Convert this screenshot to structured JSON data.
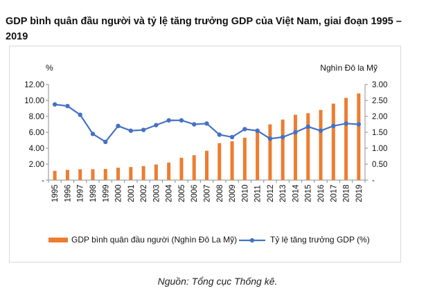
{
  "title": "GDP bình quân đầu người và tỷ lệ tăng trưởng GDP của Việt Nam, giai đoạn 1995 – 2019",
  "source": "Nguồn: Tổng cục Thống kê.",
  "colors": {
    "bar": "#ED7D31",
    "line": "#4472C4"
  },
  "chart_data": {
    "type": "bar+line",
    "categories": [
      "1995",
      "1996",
      "1997",
      "1998",
      "1999",
      "2000",
      "2001",
      "2002",
      "2003",
      "2004",
      "2005",
      "2006",
      "2007",
      "2008",
      "2009",
      "2010",
      "2011",
      "2012",
      "2013",
      "2014",
      "2015",
      "2016",
      "2017",
      "2018",
      "2019"
    ],
    "left_axis": {
      "unit": "%",
      "ylim": [
        0,
        12
      ],
      "ticks": [
        "-",
        "2.00",
        "4.00",
        "6.00",
        "8.00",
        "10.00",
        "12.00"
      ]
    },
    "right_axis": {
      "unit": "Nghìn Đô la Mỹ",
      "ylim": [
        0,
        3
      ],
      "ticks": [
        "-",
        "0.50",
        "1.00",
        "1.50",
        "2.00",
        "2.50",
        "3.00"
      ]
    },
    "series": [
      {
        "name": "GDP bình quân đầu người (Nghìn  Đô La Mỹ)",
        "type": "bar",
        "axis": "right",
        "values": [
          0.29,
          0.32,
          0.34,
          0.34,
          0.35,
          0.39,
          0.41,
          0.44,
          0.49,
          0.55,
          0.7,
          0.78,
          0.92,
          1.16,
          1.22,
          1.33,
          1.55,
          1.75,
          1.9,
          2.05,
          2.1,
          2.2,
          2.4,
          2.58,
          2.72
        ]
      },
      {
        "name": "Tỷ lệ tăng trưởng GDP (%)",
        "type": "line",
        "axis": "left",
        "values": [
          9.5,
          9.3,
          8.2,
          5.8,
          4.8,
          6.8,
          6.2,
          6.3,
          6.9,
          7.5,
          7.5,
          7.0,
          7.1,
          5.7,
          5.4,
          6.4,
          6.2,
          5.2,
          5.4,
          6.0,
          6.7,
          6.2,
          6.8,
          7.1,
          7.0
        ]
      }
    ],
    "legend_position": "bottom",
    "grid": false
  }
}
